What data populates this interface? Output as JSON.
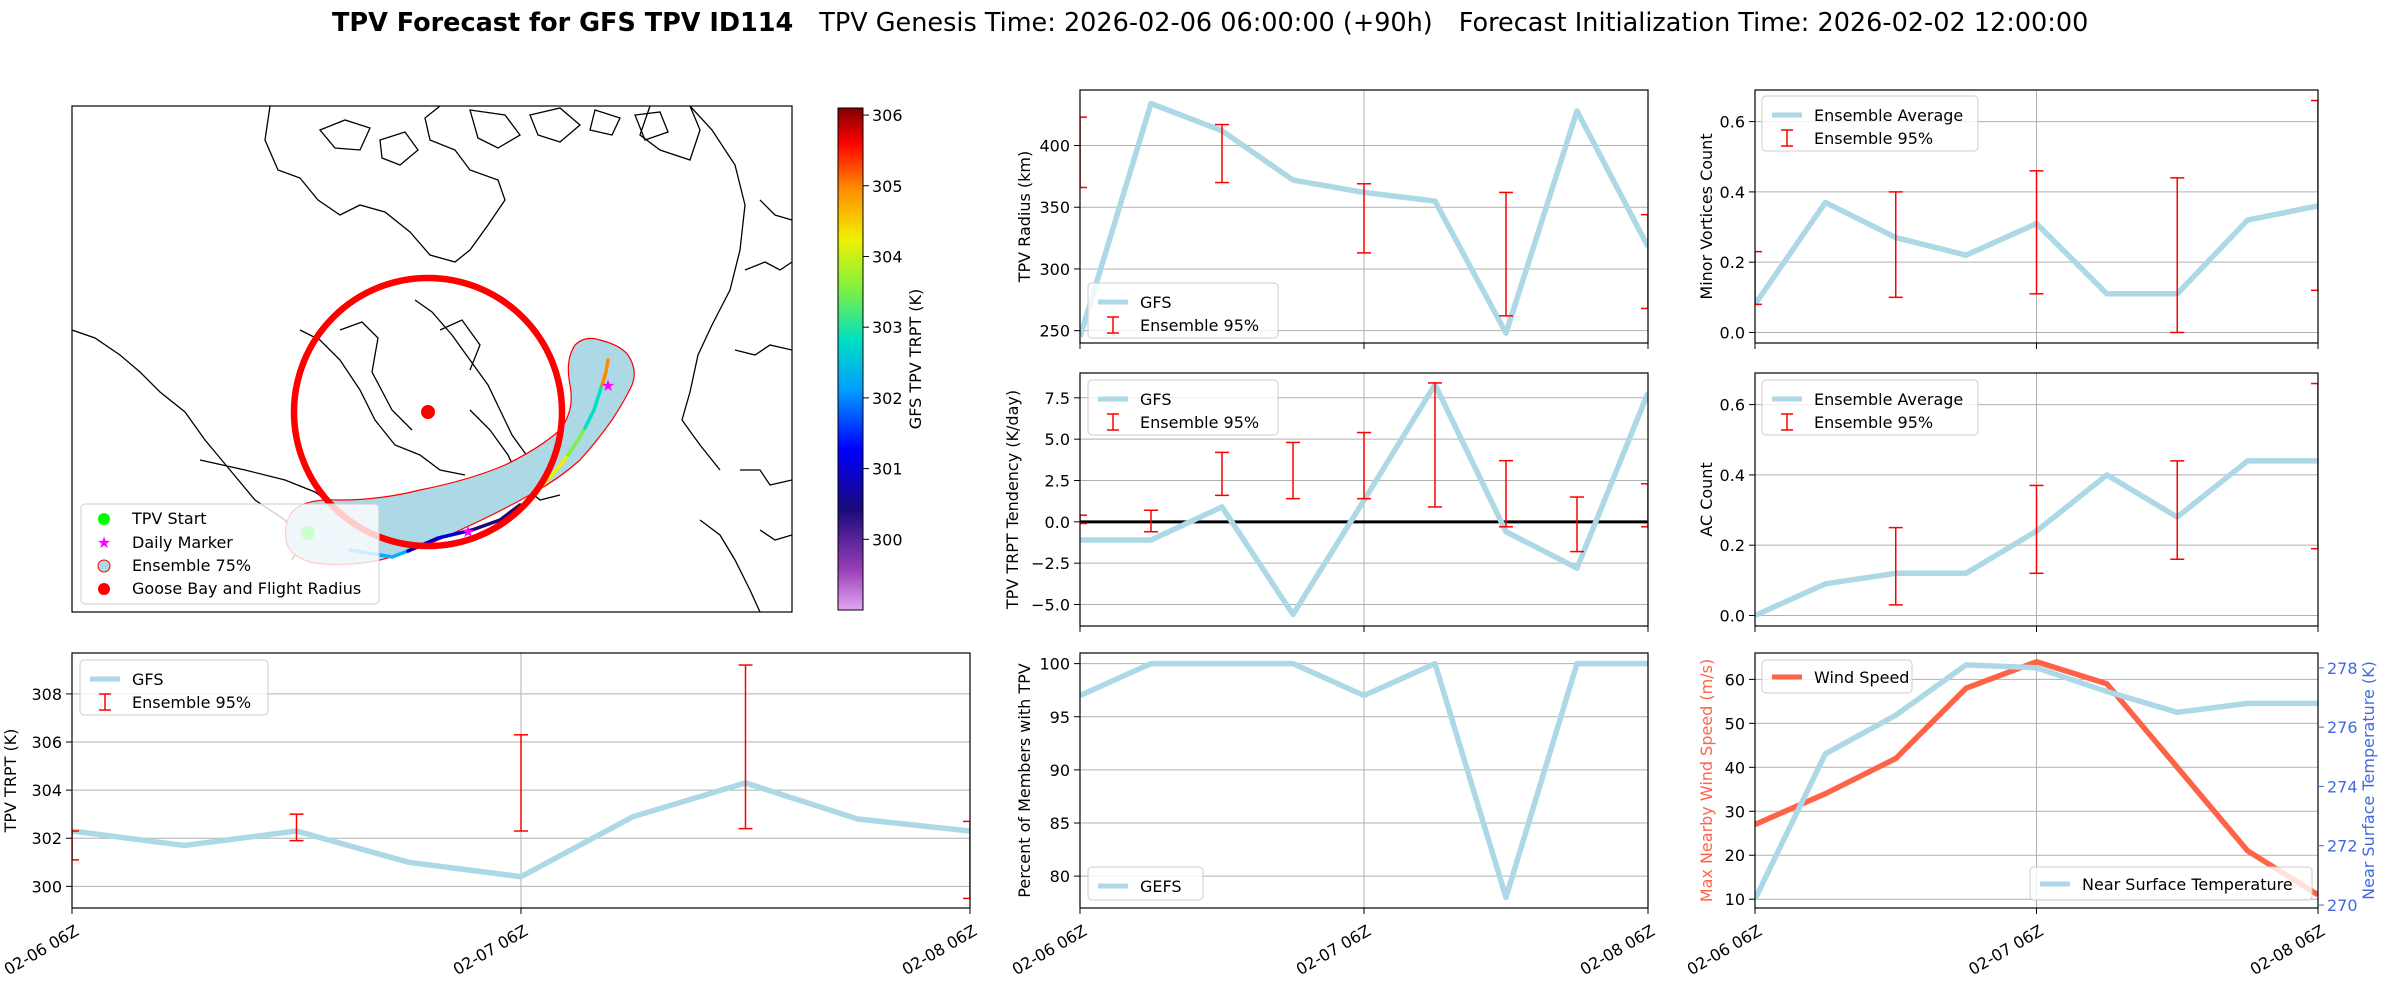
{
  "figure": {
    "title_bold": "TPV Forecast for GFS TPV ID114",
    "title_genesis": "TPV Genesis Time: 2026-02-06 06:00:00 (+90h)",
    "title_init": "Forecast Initialization Time: 2026-02-02 12:00:00"
  },
  "colors": {
    "line": "#add8e6",
    "errorbar": "#ff0000",
    "wind": "#ff6347",
    "temp_axis": "#4169e1",
    "grid": "#b0b0b0",
    "zero_line": "#000000"
  },
  "map": {
    "legend": [
      "TPV Start",
      "Daily Marker",
      "Ensemble 75%",
      "Goose Bay and Flight Radius"
    ],
    "colorbar_label": "GFS TPV TRPT (K)",
    "colorbar_ticks": [
      "306",
      "305",
      "304",
      "303",
      "302",
      "301",
      "300"
    ]
  },
  "chart_data": [
    {
      "id": "radius",
      "type": "line",
      "ylabel": "TPV Radius (km)",
      "x_hours": [
        0,
        6,
        12,
        18,
        24,
        30,
        36,
        42,
        48
      ],
      "series": [
        {
          "name": "GFS",
          "values": [
            245,
            434,
            412,
            372,
            362,
            355,
            248,
            428,
            318
          ]
        }
      ],
      "errorbars": [
        {
          "x": 0,
          "low": 366,
          "high": 423
        },
        {
          "x": 12,
          "low": 370,
          "high": 417
        },
        {
          "x": 24,
          "low": 313,
          "high": 369
        },
        {
          "x": 36,
          "low": 262,
          "high": 362
        },
        {
          "x": 48,
          "low": 268,
          "high": 344
        }
      ],
      "ylim": [
        240,
        445
      ],
      "yticks": [
        250,
        300,
        350,
        400
      ],
      "legend": [
        "GFS",
        "Ensemble 95%"
      ],
      "legend_pos": "lower-left"
    },
    {
      "id": "tendency",
      "type": "line",
      "ylabel": "TPV TRPT Tendency (K/day)",
      "x_hours": [
        0,
        6,
        12,
        18,
        24,
        30,
        36,
        42,
        48
      ],
      "series": [
        {
          "name": "GFS",
          "values": [
            -1.1,
            -1.1,
            0.9,
            -5.6,
            1.3,
            8.3,
            -0.6,
            -2.8,
            7.8
          ]
        }
      ],
      "errorbars": [
        {
          "x": 0,
          "low": -0.1,
          "high": 0.4
        },
        {
          "x": 6,
          "low": -0.6,
          "high": 0.7
        },
        {
          "x": 12,
          "low": 1.6,
          "high": 4.2
        },
        {
          "x": 18,
          "low": 1.4,
          "high": 4.8
        },
        {
          "x": 24,
          "low": 1.4,
          "high": 5.4
        },
        {
          "x": 30,
          "low": 0.9,
          "high": 8.4
        },
        {
          "x": 36,
          "low": -0.3,
          "high": 3.7
        },
        {
          "x": 42,
          "low": -1.8,
          "high": 1.5
        },
        {
          "x": 48,
          "low": -0.3,
          "high": 2.3
        }
      ],
      "zero_line": 0,
      "ylim": [
        -6.3,
        9.0
      ],
      "yticks": [
        -5.0,
        -2.5,
        0.0,
        2.5,
        5.0,
        7.5
      ],
      "ytick_labels": [
        "−5.0",
        "−2.5",
        "0.0",
        "2.5",
        "5.0",
        "7.5"
      ],
      "legend": [
        "GFS",
        "Ensemble 95%"
      ],
      "legend_pos": "upper-left"
    },
    {
      "id": "members",
      "type": "line",
      "ylabel": "Percent of Members with TPV",
      "x_hours": [
        0,
        6,
        12,
        18,
        24,
        30,
        36,
        42,
        48
      ],
      "series": [
        {
          "name": "GEFS",
          "values": [
            97,
            100,
            100,
            100,
            97,
            100,
            78,
            100,
            100
          ]
        }
      ],
      "ylim": [
        77,
        101
      ],
      "yticks": [
        80,
        85,
        90,
        95,
        100
      ],
      "legend": [
        "GEFS"
      ],
      "legend_pos": "lower-left"
    },
    {
      "id": "minor",
      "type": "line",
      "ylabel": "Minor Vortices Count",
      "x_hours": [
        0,
        6,
        12,
        18,
        24,
        30,
        36,
        42,
        48
      ],
      "series": [
        {
          "name": "Ensemble Average",
          "values": [
            0.08,
            0.37,
            0.27,
            0.22,
            0.31,
            0.11,
            0.11,
            0.32,
            0.36
          ]
        }
      ],
      "errorbars": [
        {
          "x": 0,
          "low": 0.08,
          "high": 0.23
        },
        {
          "x": 12,
          "low": 0.1,
          "high": 0.4
        },
        {
          "x": 24,
          "low": 0.11,
          "high": 0.46
        },
        {
          "x": 36,
          "low": 0.0,
          "high": 0.44
        },
        {
          "x": 48,
          "low": 0.12,
          "high": 0.66
        }
      ],
      "ylim": [
        -0.03,
        0.69
      ],
      "yticks": [
        0.0,
        0.2,
        0.4,
        0.6
      ],
      "ytick_labels": [
        "0.0",
        "0.2",
        "0.4",
        "0.6"
      ],
      "legend": [
        "Ensemble Average",
        "Ensemble 95%"
      ],
      "legend_pos": "upper-left"
    },
    {
      "id": "ac",
      "type": "line",
      "ylabel": "AC Count",
      "x_hours": [
        0,
        6,
        12,
        18,
        24,
        30,
        36,
        42,
        48
      ],
      "series": [
        {
          "name": "Ensemble Average",
          "values": [
            0.0,
            0.09,
            0.12,
            0.12,
            0.24,
            0.4,
            0.28,
            0.44,
            0.44
          ]
        }
      ],
      "errorbars": [
        {
          "x": 12,
          "low": 0.03,
          "high": 0.25
        },
        {
          "x": 24,
          "low": 0.12,
          "high": 0.37
        },
        {
          "x": 36,
          "low": 0.16,
          "high": 0.44
        },
        {
          "x": 48,
          "low": 0.19,
          "high": 0.66
        }
      ],
      "ylim": [
        -0.03,
        0.69
      ],
      "yticks": [
        0.0,
        0.2,
        0.4,
        0.6
      ],
      "ytick_labels": [
        "0.0",
        "0.2",
        "0.4",
        "0.6"
      ],
      "legend": [
        "Ensemble Average",
        "Ensemble 95%"
      ],
      "legend_pos": "upper-left"
    },
    {
      "id": "trpt",
      "type": "line",
      "ylabel": "TPV TRPT (K)",
      "x_hours": [
        0,
        6,
        12,
        18,
        24,
        30,
        36,
        42,
        48
      ],
      "series": [
        {
          "name": "GFS",
          "values": [
            302.3,
            301.7,
            302.3,
            301.0,
            300.4,
            302.9,
            304.3,
            302.8,
            302.3
          ]
        }
      ],
      "errorbars": [
        {
          "x": 0,
          "low": 301.1,
          "high": 302.3
        },
        {
          "x": 12,
          "low": 301.9,
          "high": 303.0
        },
        {
          "x": 24,
          "low": 302.3,
          "high": 306.3
        },
        {
          "x": 36,
          "low": 302.4,
          "high": 309.2
        },
        {
          "x": 48,
          "low": 299.5,
          "high": 302.7
        }
      ],
      "ylim": [
        299.1,
        309.7
      ],
      "yticks": [
        300,
        302,
        304,
        306,
        308
      ],
      "xtick_labels": [
        "02-06 06Z",
        "02-07 06Z",
        "02-08 06Z"
      ],
      "legend": [
        "GFS",
        "Ensemble 95%"
      ],
      "legend_pos": "upper-left"
    },
    {
      "id": "wind_temp",
      "type": "line",
      "ylabel": "Max Nearby Wind Speed (m/s)",
      "ylabel_right": "Near Surface Temperature (K)",
      "x_hours": [
        0,
        6,
        12,
        18,
        24,
        30,
        36,
        42,
        48
      ],
      "series": [
        {
          "name": "Wind Speed",
          "axis": "left",
          "values": [
            27,
            34,
            42,
            58,
            64,
            59,
            40,
            21,
            11
          ]
        },
        {
          "name": "Near Surface Temperature",
          "axis": "right",
          "values": [
            270.2,
            275.1,
            276.4,
            278.1,
            278.0,
            277.2,
            276.5,
            276.8,
            276.8
          ]
        }
      ],
      "ylim": [
        8,
        66
      ],
      "yticks": [
        10,
        20,
        30,
        40,
        50,
        60
      ],
      "ylim_right": [
        269.9,
        278.5
      ],
      "yticks_right": [
        270,
        272,
        274,
        276,
        278
      ],
      "legend": [
        "Wind Speed",
        "Near Surface Temperature"
      ]
    }
  ],
  "xtick_labels": [
    "02-06 06Z",
    "02-07 06Z",
    "02-08 06Z"
  ]
}
